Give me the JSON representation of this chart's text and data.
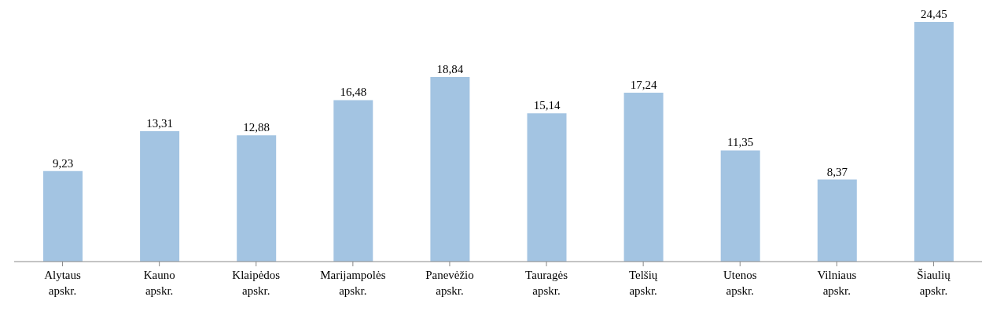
{
  "chart_data": {
    "type": "bar",
    "categories": [
      "Alytaus apskr.",
      "Kauno apskr.",
      "Klaipėdos apskr.",
      "Marijampolės apskr.",
      "Panevėžio apskr.",
      "Tauragės apskr.",
      "Telšių apskr.",
      "Utenos apskr.",
      "Vilniaus apskr.",
      "Šiaulių apskr."
    ],
    "values": [
      9.23,
      13.31,
      12.88,
      16.48,
      18.84,
      15.14,
      17.24,
      11.35,
      8.37,
      24.45
    ],
    "value_labels": [
      "9,23",
      "13,31",
      "12,88",
      "16,48",
      "18,84",
      "15,14",
      "17,24",
      "11,35",
      "8,37",
      "24,45"
    ],
    "color": "#a3c4e2",
    "grid": false,
    "legend": false
  }
}
